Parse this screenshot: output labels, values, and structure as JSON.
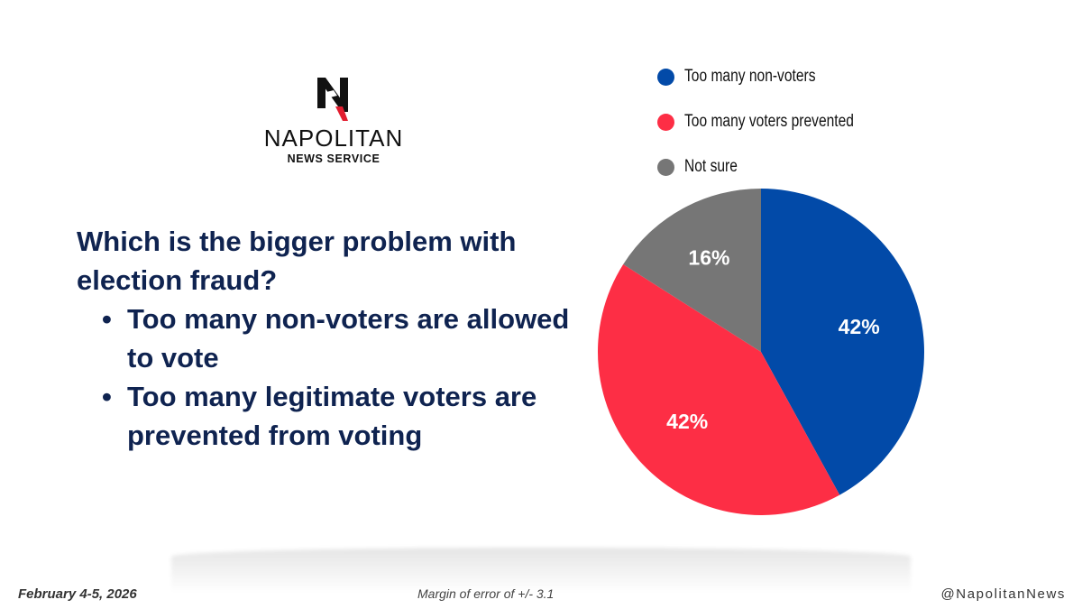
{
  "brand": {
    "name": "NAPOLITAN",
    "subtitle": "NEWS SERVICE"
  },
  "question": {
    "title": "Which is the bigger problem with election fraud?",
    "options": [
      "Too many non-voters are allowed to vote",
      "Too many legitimate voters are prevented from voting"
    ]
  },
  "chart_data": {
    "type": "pie",
    "title": "Which is the bigger problem with election fraud?",
    "legend_position": "top-right",
    "slices": [
      {
        "label": "Too many non-voters",
        "value": 42,
        "display": "42%",
        "color": "#024aa8"
      },
      {
        "label": "Too many voters prevented",
        "value": 42,
        "display": "42%",
        "color": "#fd2e45"
      },
      {
        "label": "Not sure",
        "value": 16,
        "display": "16%",
        "color": "#767676"
      }
    ],
    "start": "top",
    "direction": "clockwise"
  },
  "footer": {
    "date": "February 4-5, 2026",
    "margin_of_error": "Margin of error of +/- 3.1",
    "handle": "@NapolitanNews"
  }
}
